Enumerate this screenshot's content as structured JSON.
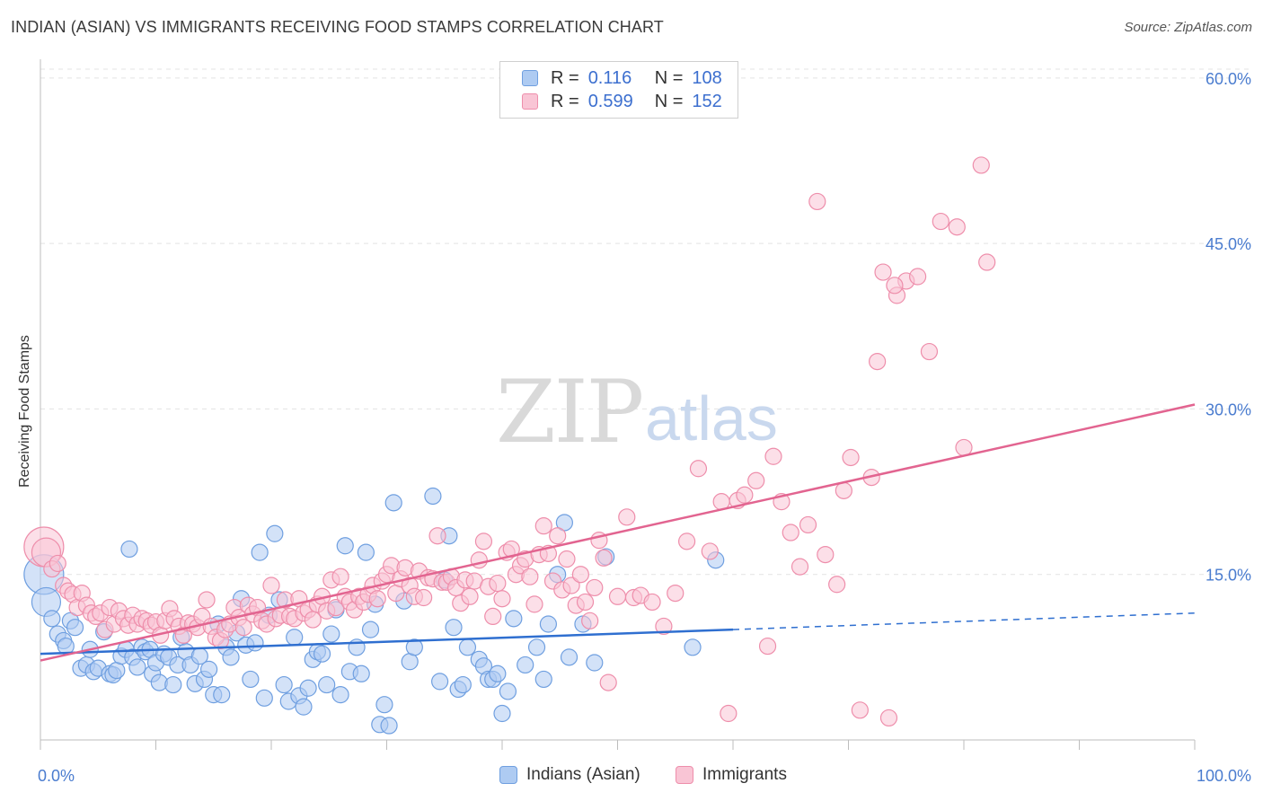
{
  "header": {
    "title": "INDIAN (ASIAN) VS IMMIGRANTS RECEIVING FOOD STAMPS CORRELATION CHART",
    "source": "Source: ZipAtlas.com"
  },
  "watermark": {
    "zip": "ZIP",
    "atlas": "atlas"
  },
  "legend": {
    "rows": [
      {
        "r_label": "R =",
        "r_value": "0.116",
        "n_label": "N =",
        "n_value": "108",
        "fill": "#aecbf2",
        "stroke": "#6f9fe0"
      },
      {
        "r_label": "R =",
        "r_value": "0.599",
        "n_label": "N =",
        "n_value": "152",
        "fill": "#f9c5d5",
        "stroke": "#ee8eab"
      }
    ]
  },
  "bottom_legend": {
    "items": [
      {
        "label": "Indians (Asian)",
        "fill": "#aecbf2",
        "stroke": "#6f9fe0"
      },
      {
        "label": "Immigrants",
        "fill": "#f9c5d5",
        "stroke": "#ee8eab"
      }
    ]
  },
  "chart_data": {
    "type": "scatter",
    "title": "INDIAN (ASIAN) VS IMMIGRANTS RECEIVING FOOD STAMPS CORRELATION CHART",
    "xlabel": "",
    "ylabel": "Receiving Food Stamps",
    "xlim": [
      0,
      100
    ],
    "ylim": [
      0,
      63
    ],
    "x_tick_labels": [
      "0.0%",
      "100.0%"
    ],
    "y_ticks": [
      15,
      30,
      45,
      60
    ],
    "y_tick_labels": [
      "15.0%",
      "30.0%",
      "45.0%",
      "60.0%"
    ],
    "grid": "horizontal-dashed",
    "colors": {
      "blue_fill": "#aecbf2",
      "blue_stroke": "#6f9fe0",
      "blue_line": "#2f6fd0",
      "pink_fill": "#f9c5d5",
      "pink_stroke": "#ee8eab",
      "pink_line": "#e26490",
      "grid": "#e3e3e3",
      "axis": "#bdbdbd"
    },
    "series": [
      {
        "name": "Indians (Asian)",
        "R": 0.116,
        "N": 108,
        "trend": {
          "x0": 0,
          "y0": 7.8,
          "x1": 60,
          "y1": 10.0,
          "dash_to_x": 100,
          "dash_to_y": 11.5
        },
        "points": [
          [
            0.3,
            15.0
          ],
          [
            0.5,
            12.5
          ],
          [
            1.0,
            11.0
          ],
          [
            1.5,
            9.6
          ],
          [
            2.0,
            9.0
          ],
          [
            2.2,
            8.5
          ],
          [
            2.6,
            10.8
          ],
          [
            3.0,
            10.2
          ],
          [
            3.5,
            6.5
          ],
          [
            4.0,
            6.8
          ],
          [
            4.3,
            8.2
          ],
          [
            4.6,
            6.2
          ],
          [
            5.0,
            6.5
          ],
          [
            5.5,
            9.8
          ],
          [
            6.0,
            6.0
          ],
          [
            6.3,
            5.9
          ],
          [
            6.6,
            6.3
          ],
          [
            7.0,
            7.6
          ],
          [
            7.4,
            8.2
          ],
          [
            7.7,
            17.3
          ],
          [
            8.0,
            7.5
          ],
          [
            8.4,
            6.6
          ],
          [
            8.8,
            8.4
          ],
          [
            9.1,
            8.0
          ],
          [
            9.5,
            8.2
          ],
          [
            9.7,
            6.0
          ],
          [
            10.0,
            7.0
          ],
          [
            10.3,
            5.2
          ],
          [
            10.7,
            7.8
          ],
          [
            11.1,
            7.5
          ],
          [
            11.5,
            5.0
          ],
          [
            11.9,
            6.8
          ],
          [
            12.2,
            9.3
          ],
          [
            12.6,
            8.0
          ],
          [
            13.0,
            6.8
          ],
          [
            13.4,
            5.1
          ],
          [
            13.8,
            7.6
          ],
          [
            14.2,
            5.5
          ],
          [
            14.6,
            6.4
          ],
          [
            15.0,
            4.1
          ],
          [
            15.4,
            10.5
          ],
          [
            15.7,
            4.1
          ],
          [
            16.1,
            8.4
          ],
          [
            16.5,
            7.5
          ],
          [
            17.0,
            9.7
          ],
          [
            17.4,
            12.8
          ],
          [
            17.8,
            8.6
          ],
          [
            18.2,
            5.5
          ],
          [
            18.6,
            8.8
          ],
          [
            19.0,
            17.0
          ],
          [
            19.4,
            3.8
          ],
          [
            19.8,
            11.3
          ],
          [
            20.3,
            18.7
          ],
          [
            20.7,
            12.7
          ],
          [
            21.1,
            5.0
          ],
          [
            21.5,
            3.5
          ],
          [
            22.0,
            9.3
          ],
          [
            22.4,
            4.0
          ],
          [
            22.8,
            3.0
          ],
          [
            23.2,
            4.7
          ],
          [
            23.6,
            7.3
          ],
          [
            24.0,
            8.0
          ],
          [
            24.4,
            7.8
          ],
          [
            24.8,
            5.0
          ],
          [
            25.2,
            9.6
          ],
          [
            25.6,
            11.8
          ],
          [
            26.0,
            4.1
          ],
          [
            26.4,
            17.6
          ],
          [
            26.8,
            6.2
          ],
          [
            27.4,
            8.4
          ],
          [
            27.8,
            6.0
          ],
          [
            28.2,
            17.0
          ],
          [
            28.6,
            10.0
          ],
          [
            29.0,
            12.3
          ],
          [
            29.4,
            1.4
          ],
          [
            29.8,
            3.2
          ],
          [
            30.2,
            1.3
          ],
          [
            30.6,
            21.5
          ],
          [
            31.5,
            12.6
          ],
          [
            32.0,
            7.1
          ],
          [
            32.4,
            8.4
          ],
          [
            34.0,
            22.1
          ],
          [
            34.6,
            5.3
          ],
          [
            35.0,
            14.5
          ],
          [
            35.4,
            18.5
          ],
          [
            35.8,
            10.2
          ],
          [
            36.2,
            4.6
          ],
          [
            36.6,
            5.0
          ],
          [
            37.0,
            8.4
          ],
          [
            38.0,
            7.3
          ],
          [
            38.4,
            6.7
          ],
          [
            38.8,
            5.5
          ],
          [
            39.2,
            5.5
          ],
          [
            39.6,
            6.0
          ],
          [
            40.0,
            2.4
          ],
          [
            40.5,
            4.4
          ],
          [
            41.0,
            11.0
          ],
          [
            42.0,
            6.8
          ],
          [
            43.0,
            8.4
          ],
          [
            43.6,
            5.5
          ],
          [
            44.0,
            10.5
          ],
          [
            44.8,
            15.0
          ],
          [
            45.4,
            19.7
          ],
          [
            45.8,
            7.5
          ],
          [
            47.0,
            10.5
          ],
          [
            48.0,
            7.0
          ],
          [
            49.0,
            16.6
          ],
          [
            56.5,
            8.4
          ],
          [
            58.5,
            16.3
          ]
        ]
      },
      {
        "name": "Immigrants",
        "R": 0.599,
        "N": 152,
        "trend": {
          "x0": 0,
          "y0": 7.2,
          "x1": 100,
          "y1": 30.4
        },
        "points": [
          [
            0.3,
            17.5
          ],
          [
            0.5,
            17.0
          ],
          [
            1.0,
            15.5
          ],
          [
            1.5,
            16.0
          ],
          [
            2.0,
            14.0
          ],
          [
            2.4,
            13.5
          ],
          [
            2.8,
            13.2
          ],
          [
            3.2,
            12.0
          ],
          [
            3.6,
            13.3
          ],
          [
            4.0,
            12.2
          ],
          [
            4.4,
            11.5
          ],
          [
            4.8,
            11.2
          ],
          [
            5.2,
            11.5
          ],
          [
            5.6,
            10.0
          ],
          [
            6.0,
            12.0
          ],
          [
            6.4,
            10.5
          ],
          [
            6.8,
            11.7
          ],
          [
            7.2,
            11.0
          ],
          [
            7.6,
            10.4
          ],
          [
            8.0,
            11.3
          ],
          [
            8.4,
            10.5
          ],
          [
            8.8,
            11.0
          ],
          [
            9.2,
            10.8
          ],
          [
            9.6,
            10.4
          ],
          [
            10.0,
            10.7
          ],
          [
            10.4,
            9.5
          ],
          [
            10.8,
            10.8
          ],
          [
            11.2,
            11.9
          ],
          [
            11.6,
            11.0
          ],
          [
            12.0,
            10.3
          ],
          [
            12.4,
            9.5
          ],
          [
            12.8,
            10.6
          ],
          [
            13.2,
            10.5
          ],
          [
            13.6,
            10.2
          ],
          [
            14.0,
            11.2
          ],
          [
            14.4,
            12.7
          ],
          [
            14.8,
            10.3
          ],
          [
            15.2,
            9.3
          ],
          [
            15.6,
            9.0
          ],
          [
            16.0,
            10.0
          ],
          [
            16.4,
            10.5
          ],
          [
            16.8,
            12.0
          ],
          [
            17.2,
            11.1
          ],
          [
            17.6,
            10.2
          ],
          [
            18.0,
            12.2
          ],
          [
            18.4,
            11.4
          ],
          [
            18.8,
            12.0
          ],
          [
            19.2,
            10.8
          ],
          [
            19.6,
            10.5
          ],
          [
            20.0,
            14.0
          ],
          [
            20.4,
            11.0
          ],
          [
            20.8,
            11.3
          ],
          [
            21.2,
            12.7
          ],
          [
            21.6,
            11.2
          ],
          [
            22.0,
            11.0
          ],
          [
            22.4,
            12.8
          ],
          [
            22.8,
            11.5
          ],
          [
            23.2,
            11.8
          ],
          [
            23.6,
            10.9
          ],
          [
            24.0,
            12.3
          ],
          [
            24.4,
            13.0
          ],
          [
            24.8,
            11.7
          ],
          [
            25.2,
            14.5
          ],
          [
            25.6,
            12.0
          ],
          [
            26.0,
            14.8
          ],
          [
            26.4,
            13.0
          ],
          [
            26.8,
            12.5
          ],
          [
            27.2,
            11.8
          ],
          [
            27.6,
            13.0
          ],
          [
            28.0,
            12.5
          ],
          [
            28.4,
            13.2
          ],
          [
            28.8,
            14.0
          ],
          [
            29.2,
            12.8
          ],
          [
            29.6,
            14.4
          ],
          [
            30.0,
            15.0
          ],
          [
            30.4,
            15.8
          ],
          [
            30.8,
            13.3
          ],
          [
            31.2,
            14.6
          ],
          [
            31.6,
            15.6
          ],
          [
            32.0,
            14.0
          ],
          [
            32.4,
            13.0
          ],
          [
            32.8,
            15.3
          ],
          [
            33.2,
            12.9
          ],
          [
            33.6,
            14.7
          ],
          [
            34.0,
            14.6
          ],
          [
            34.4,
            18.5
          ],
          [
            34.8,
            14.3
          ],
          [
            35.2,
            14.3
          ],
          [
            35.6,
            14.8
          ],
          [
            36.0,
            13.8
          ],
          [
            36.4,
            12.4
          ],
          [
            36.8,
            14.5
          ],
          [
            37.2,
            13.0
          ],
          [
            37.6,
            14.4
          ],
          [
            38.0,
            16.3
          ],
          [
            38.4,
            18.0
          ],
          [
            38.8,
            13.9
          ],
          [
            39.2,
            11.2
          ],
          [
            39.6,
            14.2
          ],
          [
            40.0,
            12.8
          ],
          [
            40.4,
            17.0
          ],
          [
            40.8,
            17.3
          ],
          [
            41.2,
            15.0
          ],
          [
            41.6,
            15.8
          ],
          [
            42.0,
            16.4
          ],
          [
            42.4,
            14.8
          ],
          [
            42.8,
            12.3
          ],
          [
            43.2,
            16.8
          ],
          [
            43.6,
            19.4
          ],
          [
            44.0,
            16.9
          ],
          [
            44.4,
            14.4
          ],
          [
            44.8,
            18.5
          ],
          [
            45.2,
            13.6
          ],
          [
            45.6,
            16.4
          ],
          [
            46.0,
            14.0
          ],
          [
            46.4,
            12.2
          ],
          [
            46.8,
            15.0
          ],
          [
            47.2,
            12.5
          ],
          [
            47.6,
            10.8
          ],
          [
            48.0,
            13.8
          ],
          [
            48.4,
            18.1
          ],
          [
            48.8,
            16.5
          ],
          [
            49.2,
            5.2
          ],
          [
            50.0,
            13.0
          ],
          [
            50.8,
            20.2
          ],
          [
            51.4,
            12.9
          ],
          [
            52.0,
            13.1
          ],
          [
            53.0,
            12.5
          ],
          [
            54.0,
            10.3
          ],
          [
            55.0,
            13.3
          ],
          [
            56.0,
            18.0
          ],
          [
            57.0,
            24.6
          ],
          [
            58.0,
            17.1
          ],
          [
            59.0,
            21.6
          ],
          [
            59.6,
            2.4
          ],
          [
            60.4,
            21.7
          ],
          [
            61.0,
            22.2
          ],
          [
            62.0,
            23.5
          ],
          [
            63.0,
            8.5
          ],
          [
            63.5,
            25.7
          ],
          [
            64.2,
            21.6
          ],
          [
            65.0,
            18.8
          ],
          [
            65.8,
            15.7
          ],
          [
            66.5,
            19.5
          ],
          [
            67.3,
            48.8
          ],
          [
            68.0,
            16.8
          ],
          [
            69.0,
            14.1
          ],
          [
            69.6,
            22.6
          ],
          [
            70.2,
            25.6
          ],
          [
            71.0,
            2.7
          ],
          [
            72.0,
            23.8
          ],
          [
            73.5,
            2.0
          ],
          [
            74.2,
            40.3
          ],
          [
            75.0,
            41.6
          ],
          [
            76.0,
            42.0
          ],
          [
            77.0,
            35.2
          ],
          [
            78.0,
            47.0
          ],
          [
            79.4,
            46.5
          ],
          [
            80.0,
            26.5
          ],
          [
            81.5,
            52.1
          ],
          [
            82.0,
            43.3
          ],
          [
            73.0,
            42.4
          ],
          [
            72.5,
            34.3
          ],
          [
            74.0,
            41.2
          ]
        ]
      }
    ]
  }
}
